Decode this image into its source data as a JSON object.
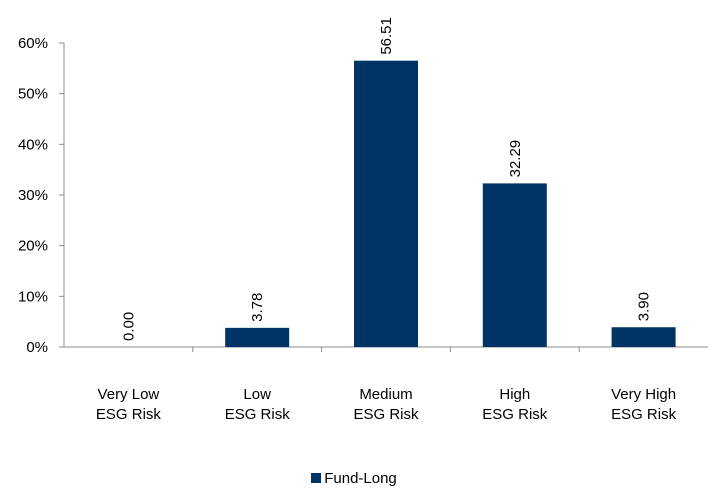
{
  "chart_data": {
    "type": "bar",
    "categories": [
      [
        "Very Low",
        "ESG Risk"
      ],
      [
        "Low",
        "ESG Risk"
      ],
      [
        "Medium",
        "ESG Risk"
      ],
      [
        "High",
        "ESG Risk"
      ],
      [
        "Very High",
        "ESG Risk"
      ]
    ],
    "series": [
      {
        "name": "Fund-Long",
        "values": [
          0.0,
          3.78,
          56.51,
          32.29,
          3.9
        ],
        "labels": [
          "0.00",
          "3.78",
          "56.51",
          "32.29",
          "3.90"
        ],
        "color": "#003366"
      }
    ],
    "yticks": [
      "0%",
      "10%",
      "20%",
      "30%",
      "40%",
      "50%",
      "60%"
    ],
    "ylim": [
      0,
      60
    ],
    "legend_position": "bottom",
    "grid": false
  }
}
